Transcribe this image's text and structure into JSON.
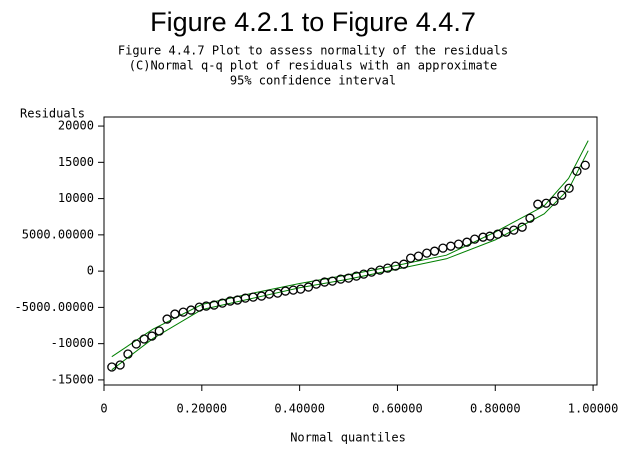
{
  "chart_data": {
    "type": "scatter",
    "title": "Figure 4.2.1 to Figure 4.4.7",
    "subtitle": [
      "Figure 4.4.7 Plot to assess normality of the residuals",
      "(C)Normal q-q plot of residuals with an approximate",
      "95% confidence interval"
    ],
    "y_label": "Residuals",
    "x_label": "Normal quantiles",
    "xlim": [
      0,
      1.008
    ],
    "ylim": [
      -15700,
      21250
    ],
    "xticks": [
      0,
      {
        "value": 0.2,
        "label": "0.20000"
      },
      {
        "value": 0.4,
        "label": "0.40000"
      },
      {
        "value": 0.6,
        "label": "0.60000"
      },
      {
        "value": 0.8,
        "label": "0.80000"
      },
      {
        "value": 1,
        "label": "1.00000"
      }
    ],
    "yticks": [
      -15000,
      -10000,
      {
        "value": -5000,
        "label": "-5000.00000"
      },
      0,
      {
        "value": 5000,
        "label": "5000.00000"
      },
      10000,
      15000,
      20000
    ],
    "series": [
      {
        "color": "#000000",
        "x": [
          0.016,
          0.033,
          0.049,
          0.066,
          0.082,
          0.098,
          0.113,
          0.129,
          0.145,
          0.162,
          0.178,
          0.195,
          0.209,
          0.225,
          0.242,
          0.258,
          0.273,
          0.289,
          0.305,
          0.322,
          0.338,
          0.355,
          0.371,
          0.387,
          0.402,
          0.418,
          0.434,
          0.451,
          0.467,
          0.484,
          0.5,
          0.516,
          0.531,
          0.547,
          0.564,
          0.58,
          0.596,
          0.613,
          0.627,
          0.643,
          0.66,
          0.676,
          0.693,
          0.709,
          0.725,
          0.742,
          0.758,
          0.775,
          0.789,
          0.805,
          0.822,
          0.838,
          0.855,
          0.871,
          0.887,
          0.904,
          0.92,
          0.936,
          0.951,
          0.967,
          0.984
        ],
        "values": [
          -13220,
          -12940,
          -11430,
          -10050,
          -9360,
          -8950,
          -8260,
          -6610,
          -5920,
          -5650,
          -5370,
          -4960,
          -4820,
          -4680,
          -4410,
          -4130,
          -3990,
          -3720,
          -3580,
          -3440,
          -3170,
          -3030,
          -2750,
          -2620,
          -2480,
          -2200,
          -1790,
          -1510,
          -1380,
          -1100,
          -960,
          -690,
          -410,
          -140,
          140,
          410,
          690,
          960,
          1790,
          2070,
          2480,
          2750,
          3170,
          3440,
          3720,
          3990,
          4410,
          4680,
          4820,
          5090,
          5370,
          5650,
          6060,
          7300,
          9230,
          9360,
          9640,
          10470,
          11430,
          13770,
          14600
        ]
      }
    ],
    "curves": [
      {
        "color": "#008000",
        "x": [
          0.016,
          0.1,
          0.2,
          0.3,
          0.4,
          0.5,
          0.6,
          0.7,
          0.8,
          0.9,
          0.95,
          0.99
        ],
        "values": [
          -11800,
          -8000,
          -4600,
          -3100,
          -1700,
          -500,
          800,
          2200,
          5400,
          9000,
          12800,
          18000
        ]
      },
      {
        "color": "#008000",
        "x": [
          0.016,
          0.1,
          0.2,
          0.3,
          0.4,
          0.5,
          0.6,
          0.7,
          0.8,
          0.9,
          0.95,
          0.99
        ],
        "values": [
          -13600,
          -9300,
          -5300,
          -3800,
          -2300,
          -1100,
          300,
          1700,
          4300,
          7900,
          11300,
          16600
        ]
      }
    ]
  }
}
